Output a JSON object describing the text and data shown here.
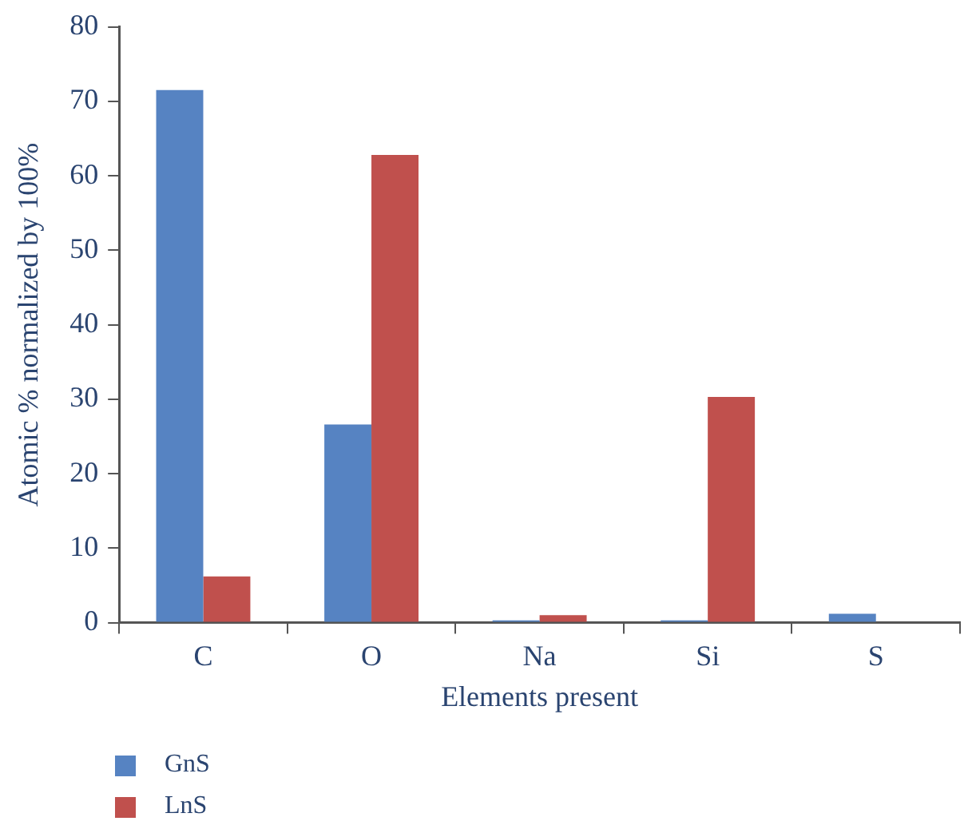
{
  "chart_data": {
    "type": "bar",
    "xlabel": "Elements present",
    "ylabel": "Atomic % normalized by 100%",
    "categories": [
      "C",
      "O",
      "Na",
      "Si",
      "S"
    ],
    "series": [
      {
        "name": "GnS",
        "color": "#5683c2",
        "values": [
          71.5,
          26.6,
          0.3,
          0.3,
          1.2
        ]
      },
      {
        "name": "LnS",
        "color": "#c0504d",
        "values": [
          6.2,
          62.8,
          1.0,
          30.3,
          0
        ]
      }
    ],
    "ylim": [
      0,
      80
    ],
    "yticks": [
      0,
      10,
      20,
      30,
      40,
      50,
      60,
      70,
      80
    ],
    "grid": false,
    "legend": "bottom"
  }
}
